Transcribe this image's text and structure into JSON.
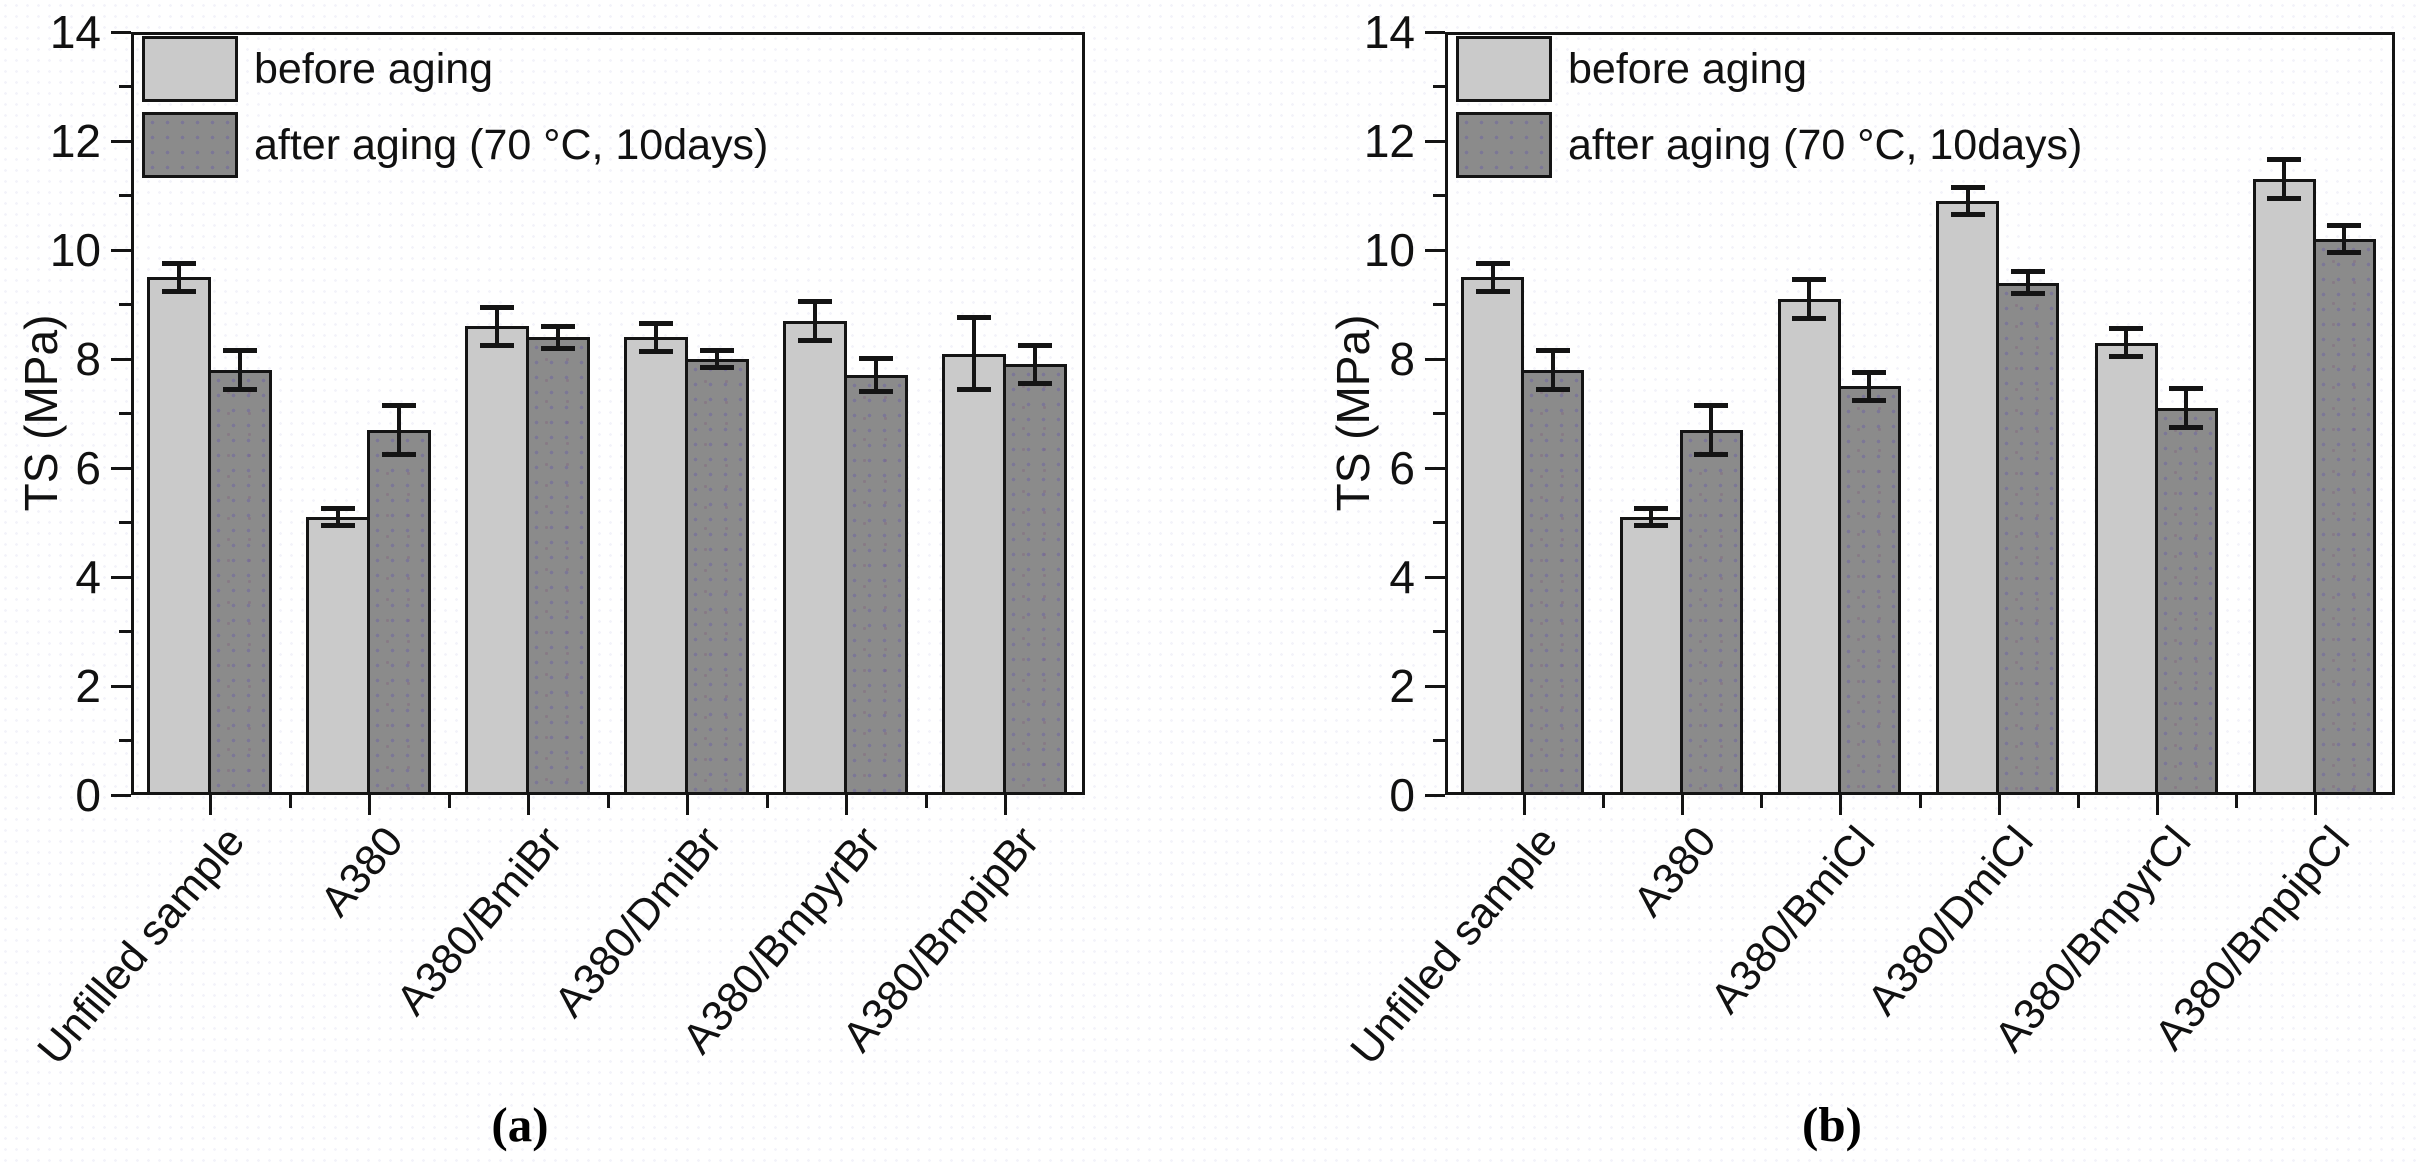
{
  "figure": {
    "caption_a": "(a)",
    "caption_b": "(b)",
    "colors": {
      "before_bar": "#cacaca",
      "after_bar": "#8b8b8b",
      "bar_border": "#141414",
      "background": "#ffffff",
      "text": "#111111"
    }
  },
  "legend": {
    "position": "top-left",
    "before_label": "before aging",
    "after_label": "after aging (70 °C, 10days)"
  },
  "chart_data": [
    {
      "id": "a",
      "panel_label": "(a)",
      "type": "bar",
      "title": "",
      "xlabel": "",
      "ylabel": "TS (MPa)",
      "ylim": [
        0,
        14
      ],
      "yticks": [
        0,
        2,
        4,
        6,
        8,
        10,
        12,
        14
      ],
      "minor_ytick_step": 1,
      "grid": false,
      "legend_position": "top-left",
      "error_bars": true,
      "categories": [
        "Unfilled sample",
        "A380",
        "A380/BmiBr",
        "A380/DmiBr",
        "A380/BmpyrBr",
        "A380/BmpipBr"
      ],
      "series": [
        {
          "name": "before aging",
          "color_key": "before_bar",
          "values": [
            9.5,
            5.1,
            8.6,
            8.4,
            8.7,
            8.1
          ],
          "errors": [
            0.3,
            0.2,
            0.4,
            0.3,
            0.4,
            0.7
          ]
        },
        {
          "name": "after aging (70 °C, 10days)",
          "color_key": "after_bar",
          "values": [
            7.8,
            6.7,
            8.4,
            8.0,
            7.7,
            7.9
          ],
          "errors": [
            0.4,
            0.5,
            0.25,
            0.2,
            0.35,
            0.4
          ]
        }
      ]
    },
    {
      "id": "b",
      "panel_label": "(b)",
      "type": "bar",
      "title": "",
      "xlabel": "",
      "ylabel": "TS (MPa)",
      "ylim": [
        0,
        14
      ],
      "yticks": [
        0,
        2,
        4,
        6,
        8,
        10,
        12,
        14
      ],
      "minor_ytick_step": 1,
      "grid": false,
      "legend_position": "top-left",
      "error_bars": true,
      "categories": [
        "Unfilled sample",
        "A380",
        "A380/BmiCl",
        "A380/DmiCl",
        "A380/BmpyrCl",
        "A380/BmpipCl"
      ],
      "series": [
        {
          "name": "before aging",
          "color_key": "before_bar",
          "values": [
            9.5,
            5.1,
            9.1,
            10.9,
            8.3,
            11.3
          ],
          "errors": [
            0.3,
            0.2,
            0.4,
            0.3,
            0.3,
            0.4
          ]
        },
        {
          "name": "after aging (70 °C, 10days)",
          "color_key": "after_bar",
          "values": [
            7.8,
            6.7,
            7.5,
            9.4,
            7.1,
            10.2
          ],
          "errors": [
            0.4,
            0.5,
            0.3,
            0.25,
            0.4,
            0.3
          ]
        }
      ]
    }
  ]
}
